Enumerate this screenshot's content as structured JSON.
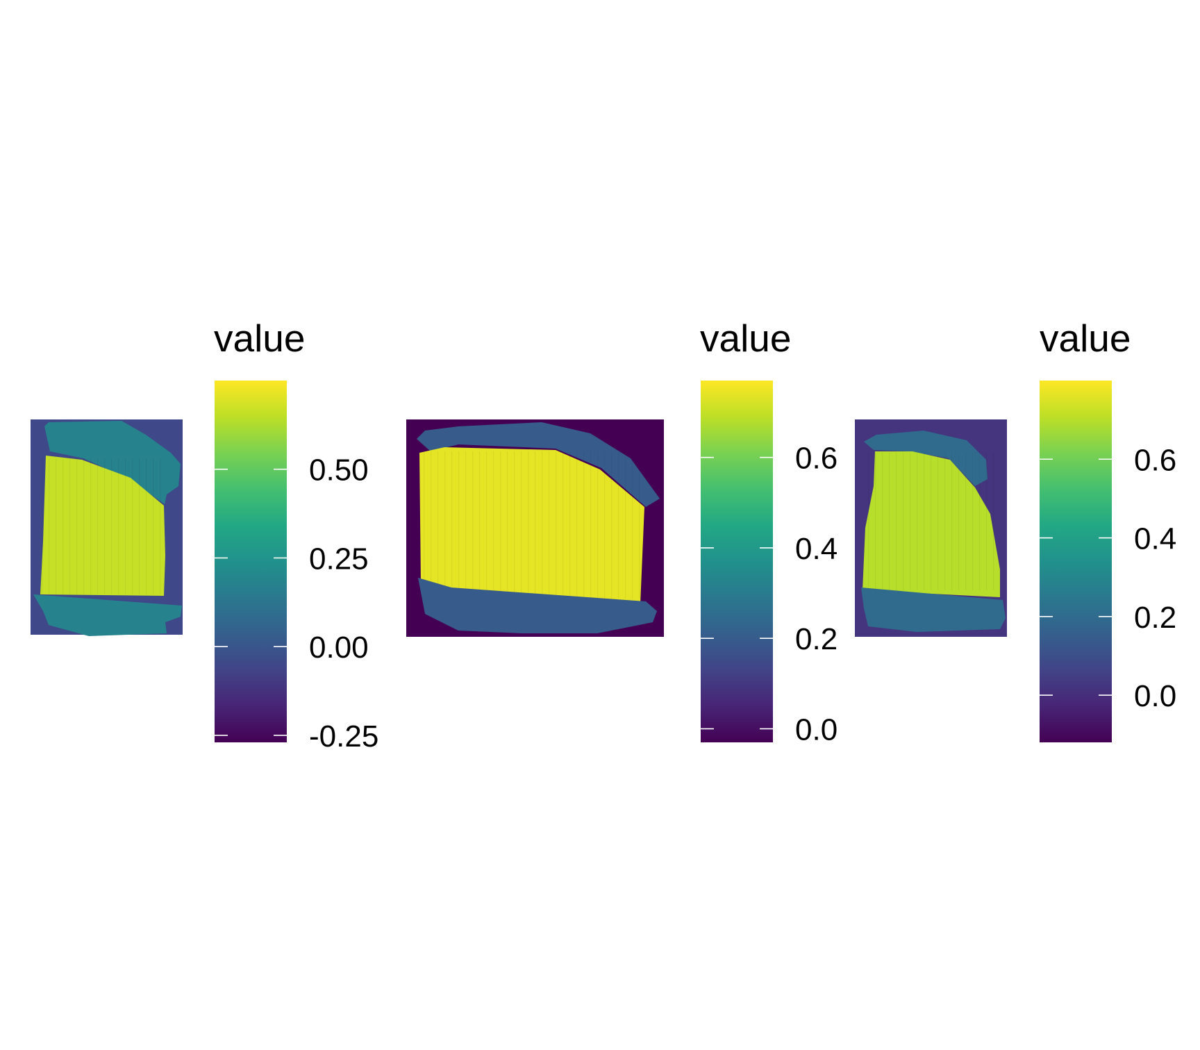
{
  "chart_data": [
    {
      "type": "heatmap",
      "legend": {
        "title": "value",
        "colormap": "viridis",
        "limits": [
          -0.27,
          0.75
        ],
        "ticks": [
          -0.25,
          0.0,
          0.25,
          0.5
        ],
        "tick_labels": [
          "-0.25",
          "0.00",
          "0.25",
          "0.50"
        ]
      },
      "raster": {
        "background_value": -0.05,
        "field_value": 0.66,
        "edge_value": 0.18
      }
    },
    {
      "type": "heatmap",
      "legend": {
        "title": "value",
        "colormap": "viridis",
        "limits": [
          -0.03,
          0.77
        ],
        "ticks": [
          0.0,
          0.2,
          0.4,
          0.6
        ],
        "tick_labels": [
          "0.0",
          "0.2",
          "0.4",
          "0.6"
        ]
      },
      "raster": {
        "background_value": -0.03,
        "field_value": 0.74,
        "edge_value": 0.2
      }
    },
    {
      "type": "heatmap",
      "legend": {
        "title": "value",
        "colormap": "viridis",
        "limits": [
          -0.12,
          0.8
        ],
        "ticks": [
          0.0,
          0.2,
          0.4,
          0.6
        ],
        "tick_labels": [
          "0.0",
          "0.2",
          "0.4",
          "0.6"
        ]
      },
      "raster": {
        "background_value": 0.02,
        "field_value": 0.7,
        "edge_value": 0.2
      }
    }
  ]
}
